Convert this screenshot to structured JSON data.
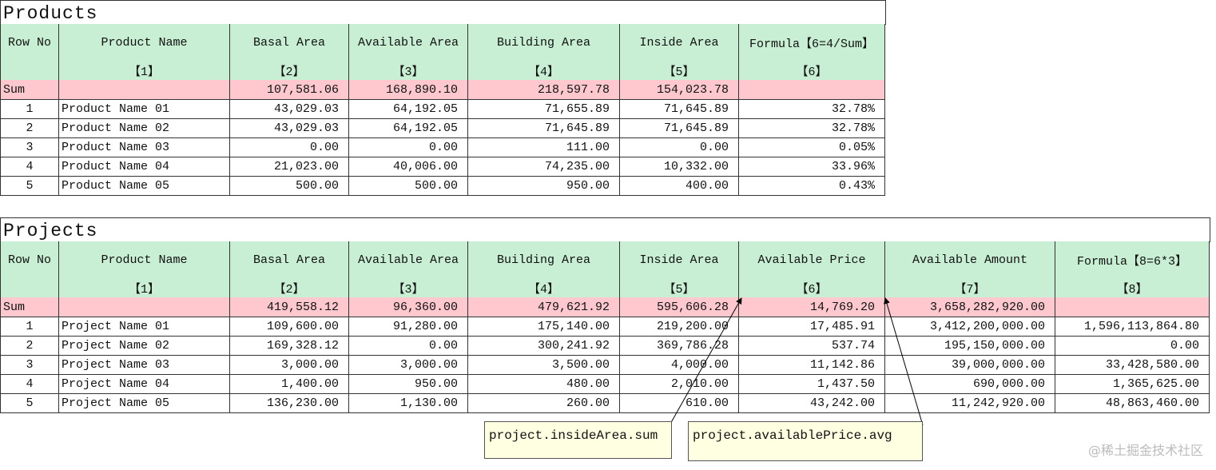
{
  "products": {
    "title": "Products",
    "headers": [
      "Row No",
      "Product Name",
      "Basal Area",
      "Available Area",
      "Building Area",
      "Inside Area",
      "Formula【6=4/Sum】"
    ],
    "indices": [
      null,
      "【1】",
      "【2】",
      "【3】",
      "【4】",
      "【5】",
      "【6】"
    ],
    "sum": [
      "Sum",
      null,
      "107,581.06",
      "168,890.10",
      "218,597.78",
      "154,023.78",
      null
    ],
    "rows": [
      [
        "1",
        "Product Name 01",
        "43,029.03",
        "64,192.05",
        "71,655.89",
        "71,645.89",
        "32.78%"
      ],
      [
        "2",
        "Product Name 02",
        "43,029.03",
        "64,192.05",
        "71,645.89",
        "71,645.89",
        "32.78%"
      ],
      [
        "3",
        "Product Name 03",
        "0.00",
        "0.00",
        "111.00",
        "0.00",
        "0.05%"
      ],
      [
        "4",
        "Product Name 04",
        "21,023.00",
        "40,006.00",
        "74,235.00",
        "10,332.00",
        "33.96%"
      ],
      [
        "5",
        "Product Name 05",
        "500.00",
        "500.00",
        "950.00",
        "400.00",
        "0.43%"
      ]
    ]
  },
  "projects": {
    "title": "Projects",
    "headers": [
      "Row No",
      "Product Name",
      "Basal Area",
      "Available Area",
      "Building Area",
      "Inside Area",
      "Available Price",
      "Available Amount",
      "Formula【8=6*3】"
    ],
    "indices": [
      null,
      "【1】",
      "【2】",
      "【3】",
      "【4】",
      "【5】",
      "【6】",
      "【7】",
      "【8】"
    ],
    "sum": [
      "Sum",
      null,
      "419,558.12",
      "96,360.00",
      "479,621.92",
      "595,606.28",
      "14,769.20",
      "3,658,282,920.00",
      null
    ],
    "rows": [
      [
        "1",
        "Project Name 01",
        "109,600.00",
        "91,280.00",
        "175,140.00",
        "219,200.00",
        "17,485.91",
        "3,412,200,000.00",
        "1,596,113,864.80"
      ],
      [
        "2",
        "Project Name 02",
        "169,328.12",
        "0.00",
        "300,241.92",
        "369,786.28",
        "537.74",
        "195,150,000.00",
        "0.00"
      ],
      [
        "3",
        "Project Name 03",
        "3,000.00",
        "3,000.00",
        "3,500.00",
        "4,000.00",
        "11,142.86",
        "39,000,000.00",
        "33,428,580.00"
      ],
      [
        "4",
        "Project Name 04",
        "1,400.00",
        "950.00",
        "480.00",
        "2,010.00",
        "1,437.50",
        "690,000.00",
        "1,365,625.00"
      ],
      [
        "5",
        "Project Name 05",
        "136,230.00",
        "1,130.00",
        "260.00",
        "610.00",
        "43,242.00",
        "11,242,920.00",
        "48,863,460.00"
      ]
    ]
  },
  "comments": [
    {
      "text": "project.insideArea.sum"
    },
    {
      "text": "project.availablePrice.avg"
    }
  ],
  "watermark": "@稀土掘金技术社区"
}
